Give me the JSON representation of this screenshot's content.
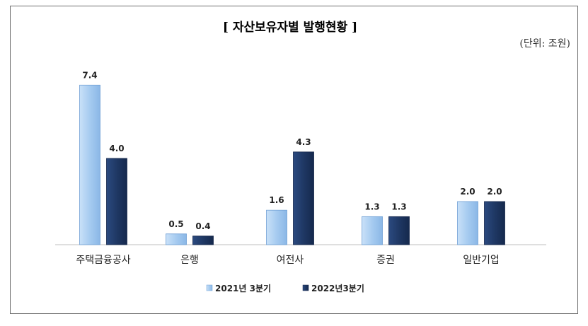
{
  "chart_data": {
    "type": "bar",
    "title": "[ 자산보유자별 발행현황 ]",
    "unit_label": "(단위: 조원)",
    "categories": [
      "주택금융공사",
      "은행",
      "여전사",
      "증권",
      "일반기업"
    ],
    "series": [
      {
        "name": "2021년 3분기",
        "values": [
          7.4,
          0.5,
          1.6,
          1.3,
          2.0
        ],
        "labels": [
          "7.4",
          "0.5",
          "1.6",
          "1.3",
          "2.0"
        ],
        "color": "#a9cdf2",
        "stroke": "#6f9fd4"
      },
      {
        "name": "2022년3분기",
        "values": [
          4.0,
          0.4,
          4.3,
          1.3,
          2.0
        ],
        "labels": [
          "4.0",
          "0.4",
          "4.3",
          "1.3",
          "2.0"
        ],
        "color": "#1f3864",
        "stroke": "#14264a"
      }
    ],
    "ylim": [
      0,
      8
    ],
    "grid": false,
    "legend_position": "bottom"
  }
}
